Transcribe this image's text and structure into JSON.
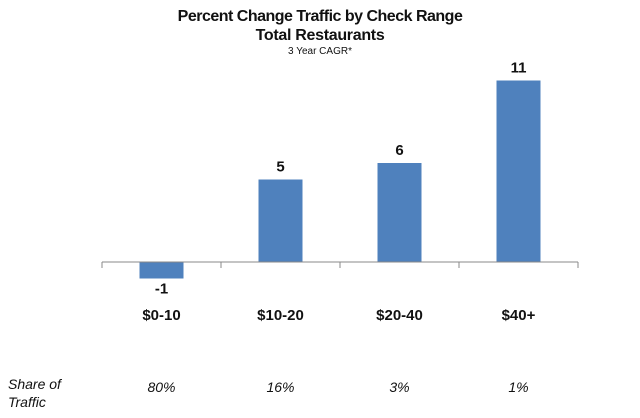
{
  "chart_data": {
    "type": "bar",
    "title": "Percent Change Traffic by Check Range",
    "subtitle": "Total Restaurants",
    "subtitle2": "3 Year CAGR*",
    "categories": [
      "$0-10",
      "$10-20",
      "$20-40",
      "$40+"
    ],
    "values": [
      -1,
      5,
      6,
      11
    ],
    "data_labels": [
      "-1",
      "5",
      "6",
      "11"
    ],
    "bar_color": "#4F81BD",
    "grid": false,
    "xlabel": "",
    "ylabel": "",
    "ylim": [
      -1,
      11
    ],
    "share_row": {
      "label": "Share of Traffic",
      "label_line1": "Share of",
      "label_line2": "Traffic",
      "values": [
        "80%",
        "16%",
        "3%",
        "1%"
      ]
    }
  }
}
